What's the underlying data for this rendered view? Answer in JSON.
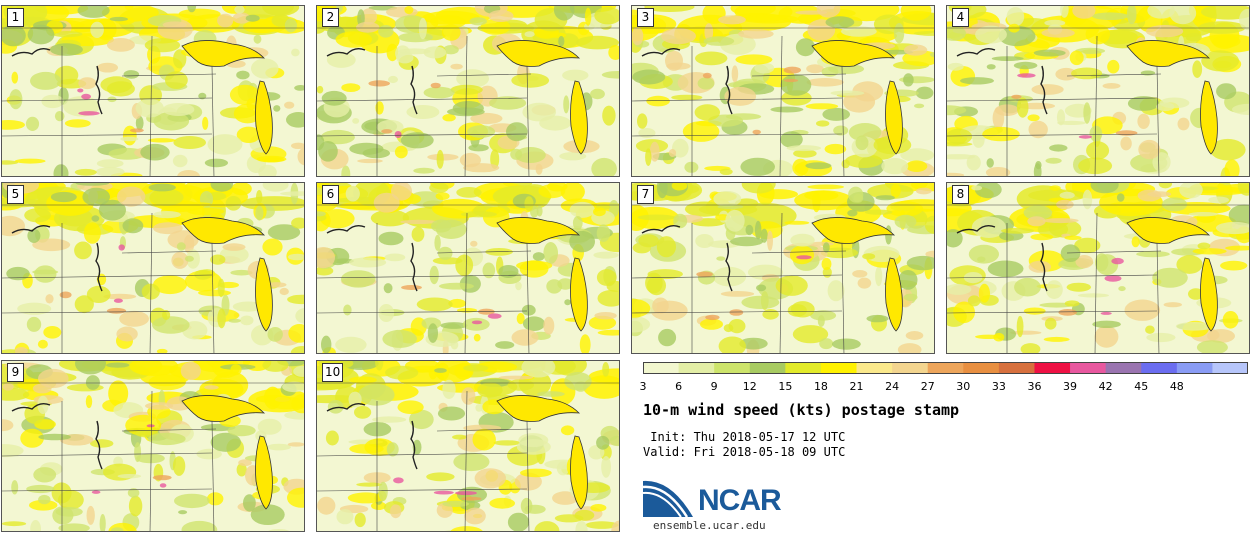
{
  "panels": [
    {
      "number": "1"
    },
    {
      "number": "2"
    },
    {
      "number": "3"
    },
    {
      "number": "4"
    },
    {
      "number": "5"
    },
    {
      "number": "6"
    },
    {
      "number": "7"
    },
    {
      "number": "8"
    },
    {
      "number": "9"
    },
    {
      "number": "10"
    }
  ],
  "colorbar": {
    "labels": [
      "3",
      "6",
      "9",
      "12",
      "15",
      "18",
      "21",
      "24",
      "27",
      "30",
      "33",
      "36",
      "39",
      "42",
      "45",
      "48"
    ],
    "colors": [
      "#f2f7cf",
      "#e3eea6",
      "#cde46b",
      "#a8cb62",
      "#e2ea2a",
      "#fff200",
      "#fbe98c",
      "#f3d58f",
      "#eda55b",
      "#e88f41",
      "#d7703e",
      "#ee1144",
      "#e8589f",
      "#9a74b0",
      "#6b6df0",
      "#8a9cf5",
      "#b7c6fb"
    ]
  },
  "title": "10-m wind speed (kts) postage stamp",
  "init": " Init: Thu 2018-05-17 12 UTC",
  "valid": "Valid: Fri 2018-05-18 09 UTC",
  "logo": {
    "text": "NCAR",
    "brand_color": "#1b5a9a"
  },
  "website": "ensemble.ucar.edu"
}
